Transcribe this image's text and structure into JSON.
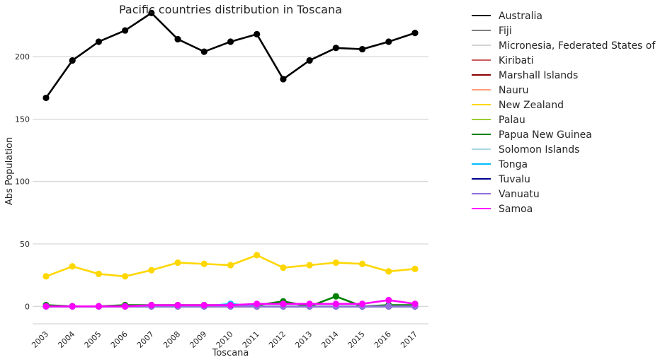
{
  "chart_data": {
    "type": "line",
    "title": "Pacific countries distribution in Toscana",
    "xlabel": "Toscana",
    "ylabel": "Abs Population",
    "x": [
      "2003",
      "2004",
      "2005",
      "2006",
      "2007",
      "2008",
      "2009",
      "2010",
      "2011",
      "2012",
      "2013",
      "2014",
      "2015",
      "2016",
      "2017"
    ],
    "ylim": [
      -14,
      242
    ],
    "yticks": [
      0,
      50,
      100,
      150,
      200
    ],
    "grid": "horizontal",
    "legend_position": "outside-right",
    "series": [
      {
        "name": "Australia",
        "color": "#000000",
        "values": [
          167,
          197,
          212,
          221,
          235,
          214,
          204,
          212,
          218,
          182,
          197,
          207,
          206,
          212,
          219
        ]
      },
      {
        "name": "Fiji",
        "color": "#808080",
        "values": [
          0,
          0,
          0,
          0,
          0,
          0,
          0,
          0,
          0,
          0,
          0,
          0,
          0,
          0,
          0
        ]
      },
      {
        "name": "Micronesia, Federated States of",
        "color": "#d3d3d3",
        "values": [
          0,
          0,
          0,
          0,
          0,
          0,
          0,
          0,
          0,
          0,
          0,
          0,
          0,
          0,
          0
        ]
      },
      {
        "name": "Kiribati",
        "color": "#cd5c5c",
        "values": [
          0,
          0,
          0,
          0,
          0,
          0,
          0,
          0,
          0,
          0,
          0,
          0,
          0,
          0,
          0
        ]
      },
      {
        "name": "Marshall Islands",
        "color": "#8b0000",
        "values": [
          0,
          0,
          0,
          0,
          0,
          0,
          0,
          0,
          0,
          0,
          0,
          0,
          0,
          0,
          0
        ]
      },
      {
        "name": "Nauru",
        "color": "#ffa07a",
        "values": [
          0,
          0,
          0,
          0,
          0,
          0,
          0,
          0,
          0,
          0,
          0,
          0,
          0,
          0,
          0
        ]
      },
      {
        "name": "New Zealand",
        "color": "#ffd700",
        "values": [
          24,
          32,
          26,
          24,
          29,
          35,
          34,
          33,
          41,
          31,
          33,
          35,
          34,
          28,
          30
        ]
      },
      {
        "name": "Palau",
        "color": "#9acd32",
        "values": [
          0,
          0,
          0,
          0,
          0,
          0,
          0,
          0,
          0,
          0,
          0,
          0,
          0,
          0,
          0
        ]
      },
      {
        "name": "Papua New Guinea",
        "color": "#008000",
        "values": [
          1,
          0,
          0,
          1,
          1,
          1,
          1,
          1,
          1,
          4,
          0,
          8,
          0,
          1,
          1
        ]
      },
      {
        "name": "Solomon Islands",
        "color": "#add8e6",
        "values": [
          0,
          0,
          0,
          0,
          0,
          0,
          0,
          0,
          0,
          0,
          0,
          0,
          0,
          0,
          0
        ]
      },
      {
        "name": "Tonga",
        "color": "#00bfff",
        "values": [
          0,
          0,
          0,
          0,
          0,
          0,
          0,
          2,
          0,
          0,
          0,
          0,
          0,
          0,
          0
        ]
      },
      {
        "name": "Tuvalu",
        "color": "#00008b",
        "values": [
          0,
          0,
          0,
          0,
          0,
          0,
          0,
          0,
          0,
          0,
          0,
          0,
          0,
          0,
          0
        ]
      },
      {
        "name": "Vanuatu",
        "color": "#9370db",
        "values": [
          0,
          0,
          0,
          0,
          0,
          0,
          0,
          0,
          0,
          0,
          0,
          0,
          0,
          0,
          0
        ]
      },
      {
        "name": "Samoa",
        "color": "#ff00ff",
        "values": [
          0,
          0,
          0,
          0,
          1,
          1,
          1,
          1,
          2,
          2,
          2,
          2,
          2,
          5,
          2
        ]
      }
    ]
  }
}
